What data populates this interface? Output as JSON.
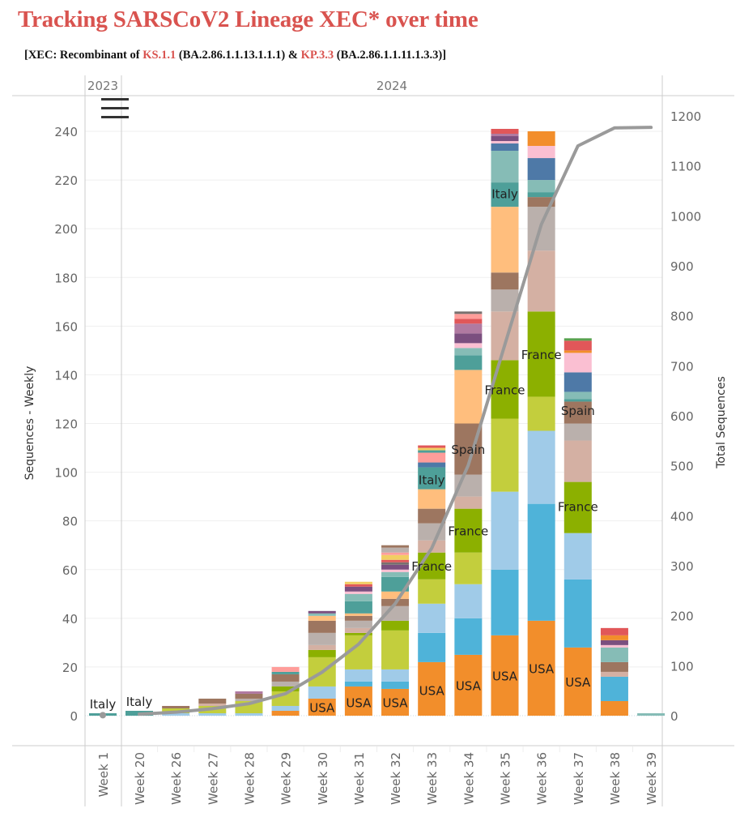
{
  "header": {
    "title": "Tracking SARSCoV2 Lineage XEC* over time",
    "subtitle_parts": [
      {
        "text": "[XEC: Recombinant of ",
        "color": "#111111"
      },
      {
        "text": "KS.1.1",
        "color": "#d9534f"
      },
      {
        "text": " (BA.2.86.1.1.13.1.1.1) & ",
        "color": "#111111"
      },
      {
        "text": "KP.3.3",
        "color": "#d9534f"
      },
      {
        "text": " (BA.2.86.1.1.11.1.3.3)]",
        "color": "#111111"
      }
    ]
  },
  "menu": {
    "icon": "hamburger-menu-icon"
  },
  "chart_data": {
    "type": "bar",
    "stacked": true,
    "title": "Tracking SARSCoV2 Lineage XEC* over time",
    "xlabel": "",
    "ylabel": "Sequences - Weekly",
    "y2label": "Total Sequences",
    "ylim": [
      0,
      240
    ],
    "y2lim": [
      0,
      1200
    ],
    "yticks": [
      0,
      20,
      40,
      60,
      80,
      100,
      120,
      140,
      160,
      180,
      200,
      220,
      240
    ],
    "y2ticks": [
      0,
      100,
      200,
      300,
      400,
      500,
      600,
      700,
      800,
      900,
      1000,
      1100,
      1200
    ],
    "grid": true,
    "year_groups": [
      {
        "label": "2023",
        "weeks": [
          "Week 1"
        ]
      },
      {
        "label": "2024",
        "weeks": [
          "Week 20",
          "Week 26",
          "Week 27",
          "Week 28",
          "Week 29",
          "Week 30",
          "Week 31",
          "Week 32",
          "Week 33",
          "Week 34",
          "Week 35",
          "Week 36",
          "Week 37",
          "Week 38",
          "Week 39"
        ]
      }
    ],
    "categories": [
      "Week 1",
      "Week 20",
      "Week 26",
      "Week 27",
      "Week 28",
      "Week 29",
      "Week 30",
      "Week 31",
      "Week 32",
      "Week 33",
      "Week 34",
      "Week 35",
      "Week 36",
      "Week 37",
      "Week 38",
      "Week 39"
    ],
    "palette": {
      "USA": "#f28e2b",
      "C2": "#4fb3d9",
      "C3": "#a0cbe8",
      "C4": "#c3ce3d",
      "France": "#8cb000",
      "C6": "#d4b0a3",
      "C7": "#bab0ac",
      "Spain": "#9d7660",
      "C9": "#ffbe7d",
      "Italy": "#4e9f99",
      "C11": "#86bcb6",
      "C12": "#fabfd2",
      "C13": "#7b4f7f",
      "C14": "#b07aa1",
      "C15": "#e15759",
      "C16": "#4e79a7",
      "C17": "#f1ce63",
      "C18": "#ff9d9a",
      "C19": "#59a14f",
      "C20": "#79706e"
    },
    "stacks": [
      {
        "week": "Week 1",
        "segments": [
          [
            "Italy",
            1
          ]
        ]
      },
      {
        "week": "Week 20",
        "segments": [
          [
            "Italy",
            2
          ]
        ]
      },
      {
        "week": "Week 26",
        "segments": [
          [
            "C3",
            1
          ],
          [
            "C4",
            2
          ],
          [
            "Spain",
            1
          ]
        ]
      },
      {
        "week": "Week 27",
        "segments": [
          [
            "C3",
            1
          ],
          [
            "C4",
            3
          ],
          [
            "C6",
            1
          ],
          [
            "Spain",
            2
          ]
        ]
      },
      {
        "week": "Week 28",
        "segments": [
          [
            "C3",
            1
          ],
          [
            "C4",
            5
          ],
          [
            "C7",
            1
          ],
          [
            "Spain",
            2
          ],
          [
            "C14",
            1
          ]
        ]
      },
      {
        "week": "Week 29",
        "segments": [
          [
            "USA",
            2
          ],
          [
            "C3",
            2
          ],
          [
            "C4",
            6
          ],
          [
            "France",
            2
          ],
          [
            "C7",
            2
          ],
          [
            "Spain",
            3
          ],
          [
            "Italy",
            1
          ],
          [
            "C18",
            2
          ]
        ]
      },
      {
        "week": "Week 30",
        "segments": [
          [
            "USA",
            7
          ],
          [
            "C3",
            5
          ],
          [
            "C4",
            12
          ],
          [
            "France",
            3
          ],
          [
            "C6",
            2
          ],
          [
            "C7",
            5
          ],
          [
            "Spain",
            5
          ],
          [
            "C9",
            2
          ],
          [
            "C11",
            1
          ],
          [
            "C13",
            1
          ]
        ]
      },
      {
        "week": "Week 31",
        "segments": [
          [
            "USA",
            12
          ],
          [
            "C2",
            2
          ],
          [
            "C3",
            5
          ],
          [
            "C4",
            14
          ],
          [
            "France",
            1
          ],
          [
            "C6",
            2
          ],
          [
            "C7",
            3
          ],
          [
            "Spain",
            2
          ],
          [
            "C9",
            1
          ],
          [
            "Italy",
            5
          ],
          [
            "C11",
            3
          ],
          [
            "C12",
            1
          ],
          [
            "C13",
            2
          ],
          [
            "C15",
            1
          ],
          [
            "C17",
            1
          ]
        ]
      },
      {
        "week": "Week 32",
        "segments": [
          [
            "USA",
            11
          ],
          [
            "C2",
            3
          ],
          [
            "C3",
            5
          ],
          [
            "C4",
            16
          ],
          [
            "France",
            4
          ],
          [
            "C7",
            6
          ],
          [
            "Spain",
            3
          ],
          [
            "C9",
            3
          ],
          [
            "Italy",
            6
          ],
          [
            "C11",
            2
          ],
          [
            "C12",
            1
          ],
          [
            "C13",
            2
          ],
          [
            "C20",
            1
          ],
          [
            "C15",
            1
          ],
          [
            "C17",
            2
          ],
          [
            "C18",
            1
          ],
          [
            "C7",
            2
          ],
          [
            "Spain",
            1
          ]
        ]
      },
      {
        "week": "Week 33",
        "segments": [
          [
            "USA",
            22
          ],
          [
            "C2",
            12
          ],
          [
            "C3",
            12
          ],
          [
            "C4",
            10
          ],
          [
            "France",
            11
          ],
          [
            "C6",
            5
          ],
          [
            "C7",
            7
          ],
          [
            "Spain",
            6
          ],
          [
            "C9",
            8
          ],
          [
            "Italy",
            9
          ],
          [
            "C16",
            2
          ],
          [
            "C18",
            4
          ],
          [
            "Italy",
            1
          ],
          [
            "C17",
            1
          ],
          [
            "C15",
            1
          ]
        ]
      },
      {
        "week": "Week 34",
        "segments": [
          [
            "USA",
            25
          ],
          [
            "C2",
            15
          ],
          [
            "C3",
            14
          ],
          [
            "C4",
            13
          ],
          [
            "France",
            18
          ],
          [
            "C6",
            5
          ],
          [
            "C7",
            9
          ],
          [
            "Spain",
            21
          ],
          [
            "C9",
            22
          ],
          [
            "Italy",
            6
          ],
          [
            "C11",
            3
          ],
          [
            "C12",
            2
          ],
          [
            "C13",
            4
          ],
          [
            "C14",
            4
          ],
          [
            "C15",
            2
          ],
          [
            "C18",
            2
          ],
          [
            "C20",
            1
          ]
        ]
      },
      {
        "week": "Week 35",
        "segments": [
          [
            "USA",
            33
          ],
          [
            "C2",
            27
          ],
          [
            "C3",
            32
          ],
          [
            "C4",
            30
          ],
          [
            "France",
            24
          ],
          [
            "C6",
            20
          ],
          [
            "C7",
            9
          ],
          [
            "Spain",
            7
          ],
          [
            "C9",
            27
          ],
          [
            "Italy",
            10
          ],
          [
            "C11",
            13
          ],
          [
            "C16",
            3
          ],
          [
            "C12",
            1
          ],
          [
            "C13",
            2
          ],
          [
            "C14",
            1
          ],
          [
            "C15",
            2
          ]
        ]
      },
      {
        "week": "Week 36",
        "segments": [
          [
            "USA",
            39
          ],
          [
            "C2",
            48
          ],
          [
            "C3",
            30
          ],
          [
            "C4",
            14
          ],
          [
            "France",
            35
          ],
          [
            "C6",
            25
          ],
          [
            "C7",
            18
          ],
          [
            "Spain",
            4
          ],
          [
            "Italy",
            2
          ],
          [
            "C11",
            5
          ],
          [
            "C16",
            9
          ],
          [
            "C12",
            5
          ],
          [
            "USA",
            6
          ]
        ]
      },
      {
        "week": "Week 37",
        "segments": [
          [
            "USA",
            28
          ],
          [
            "C2",
            28
          ],
          [
            "C3",
            19
          ],
          [
            "France",
            21
          ],
          [
            "C6",
            17
          ],
          [
            "C7",
            7
          ],
          [
            "Spain",
            9
          ],
          [
            "Italy",
            1
          ],
          [
            "C11",
            3
          ],
          [
            "C16",
            8
          ],
          [
            "C12",
            8
          ],
          [
            "USA",
            1
          ],
          [
            "C15",
            4
          ],
          [
            "C19",
            1
          ]
        ]
      },
      {
        "week": "Week 38",
        "segments": [
          [
            "USA",
            6
          ],
          [
            "C2",
            10
          ],
          [
            "C6",
            2
          ],
          [
            "Spain",
            4
          ],
          [
            "C11",
            6
          ],
          [
            "C12",
            1
          ],
          [
            "C13",
            2
          ],
          [
            "USA",
            2
          ],
          [
            "C15",
            3
          ]
        ]
      },
      {
        "week": "Week 39",
        "segments": [
          [
            "C11",
            1
          ]
        ]
      }
    ],
    "bar_labels": [
      {
        "week": "Week 1",
        "text": "Italy",
        "value": 5
      },
      {
        "week": "Week 20",
        "text": "Italy",
        "value": 6
      },
      {
        "week": "Week 30",
        "text": "USA",
        "value": 3.5
      },
      {
        "week": "Week 31",
        "text": "USA",
        "value": 5.5
      },
      {
        "week": "Week 32",
        "text": "USA",
        "value": 5.5
      },
      {
        "week": "Week 33",
        "text": "USA",
        "value": 10.5
      },
      {
        "week": "Week 33",
        "text": "France",
        "value": 61.5
      },
      {
        "week": "Week 33",
        "text": "Italy",
        "value": 97
      },
      {
        "week": "Week 34",
        "text": "USA",
        "value": 12.5
      },
      {
        "week": "Week 34",
        "text": "France",
        "value": 76
      },
      {
        "week": "Week 34",
        "text": "Spain",
        "value": 109.5
      },
      {
        "week": "Week 35",
        "text": "USA",
        "value": 16.5
      },
      {
        "week": "Week 35",
        "text": "France",
        "value": 134
      },
      {
        "week": "Week 35",
        "text": "Italy",
        "value": 214.5
      },
      {
        "week": "Week 36",
        "text": "USA",
        "value": 19.5
      },
      {
        "week": "Week 36",
        "text": "France",
        "value": 148.5
      },
      {
        "week": "Week 37",
        "text": "USA",
        "value": 14
      },
      {
        "week": "Week 37",
        "text": "France",
        "value": 86
      },
      {
        "week": "Week 37",
        "text": "Spain",
        "value": 125.5
      }
    ],
    "line_series": {
      "name": "Total Sequences",
      "axis": "y2",
      "color": "#9a9a9a",
      "points": [
        {
          "week": "Week 1",
          "value": 1,
          "marker": true
        },
        {
          "week": "Week 20",
          "value": 3
        },
        {
          "week": "Week 26",
          "value": 7
        },
        {
          "week": "Week 27",
          "value": 14
        },
        {
          "week": "Week 28",
          "value": 24
        },
        {
          "week": "Week 29",
          "value": 44
        },
        {
          "week": "Week 30",
          "value": 87
        },
        {
          "week": "Week 31",
          "value": 143
        },
        {
          "week": "Week 32",
          "value": 224
        },
        {
          "week": "Week 33",
          "value": 335
        },
        {
          "week": "Week 34",
          "value": 501
        },
        {
          "week": "Week 35",
          "value": 742
        },
        {
          "week": "Week 36",
          "value": 983
        },
        {
          "week": "Week 37",
          "value": 1140
        },
        {
          "week": "Week 38",
          "value": 1176
        },
        {
          "week": "Week 39",
          "value": 1177
        }
      ]
    }
  }
}
